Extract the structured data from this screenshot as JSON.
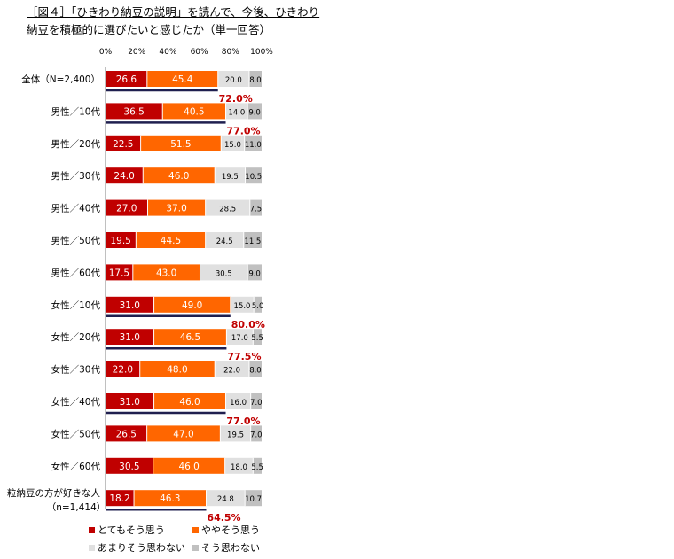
{
  "title_line1": "［図４］「ひきわり納豆の説明」を読んで、今後、ひきわり",
  "title_line2": "納豆を積極的に選びたいと感じたか（単一回答）",
  "chart_data": {
    "type": "bar",
    "orientation": "horizontal",
    "stacked": true,
    "percent": true,
    "xlim": [
      0,
      100
    ],
    "x_ticks": [
      "0%",
      "20%",
      "40%",
      "60%",
      "80%",
      "100%"
    ],
    "categories": [
      "全体（N=2,400）",
      "男性／10代",
      "男性／20代",
      "男性／30代",
      "男性／40代",
      "男性／50代",
      "男性／60代",
      "女性／10代",
      "女性／20代",
      "女性／30代",
      "女性／40代",
      "女性／50代",
      "女性／60代",
      "粒納豆の方が好きな人|（n=1,414）"
    ],
    "series": [
      {
        "name": "とてもそう思う",
        "color": "#c00000",
        "values": [
          26.6,
          36.5,
          22.5,
          24.0,
          27.0,
          19.5,
          17.5,
          31.0,
          31.0,
          22.0,
          31.0,
          26.5,
          30.5,
          18.2
        ]
      },
      {
        "name": "ややそう思う",
        "color": "#ff6600",
        "values": [
          45.4,
          40.5,
          51.5,
          46.0,
          37.0,
          44.5,
          43.0,
          49.0,
          46.5,
          48.0,
          46.0,
          47.0,
          46.0,
          46.3
        ]
      },
      {
        "name": "あまりそう思わない",
        "color": "#e0e0e0",
        "values": [
          20.0,
          14.0,
          15.0,
          19.5,
          28.5,
          24.5,
          30.5,
          15.0,
          17.0,
          22.0,
          16.0,
          19.5,
          18.0,
          24.8
        ]
      },
      {
        "name": "そう思わない",
        "color": "#c0c0c0",
        "values": [
          8.0,
          9.0,
          11.0,
          10.5,
          7.5,
          11.5,
          9.0,
          5.0,
          5.5,
          8.0,
          7.0,
          7.0,
          5.5,
          10.7
        ]
      }
    ],
    "value_labels": [
      [
        "26.6",
        "45.4",
        "20.0",
        "8.0"
      ],
      [
        "36.5",
        "40.5",
        "14.0",
        "9.0"
      ],
      [
        "22.5",
        "51.5",
        "15.0",
        "11.0"
      ],
      [
        "24.0",
        "46.0",
        "19.5",
        "10.5"
      ],
      [
        "27.0",
        "37.0",
        "28.5",
        "7.5"
      ],
      [
        "19.5",
        "44.5",
        "24.5",
        "11.5"
      ],
      [
        "17.5",
        "43.0",
        "30.5",
        "9.0"
      ],
      [
        "31.0",
        "49.0",
        "15.0",
        "5.0"
      ],
      [
        "31.0",
        "46.5",
        "17.0",
        "5.5"
      ],
      [
        "22.0",
        "48.0",
        "22.0",
        "8.0"
      ],
      [
        "31.0",
        "46.0",
        "16.0",
        "7.0"
      ],
      [
        "26.5",
        "47.0",
        "19.5",
        "7.0"
      ],
      [
        "30.5",
        "46.0",
        "18.0",
        "5.5"
      ],
      [
        "18.2",
        "46.3",
        "24.8",
        "10.7"
      ]
    ],
    "totals": [
      {
        "category_index": 0,
        "label": "72.0%"
      },
      {
        "category_index": 1,
        "label": "77.0%"
      },
      {
        "category_index": 7,
        "label": "80.0%"
      },
      {
        "category_index": 8,
        "label": "77.5%"
      },
      {
        "category_index": 10,
        "label": "77.0%"
      },
      {
        "category_index": 13,
        "label": "64.5%"
      }
    ],
    "totals_color": "#c00000",
    "grid": false,
    "legend_position": "bottom"
  }
}
